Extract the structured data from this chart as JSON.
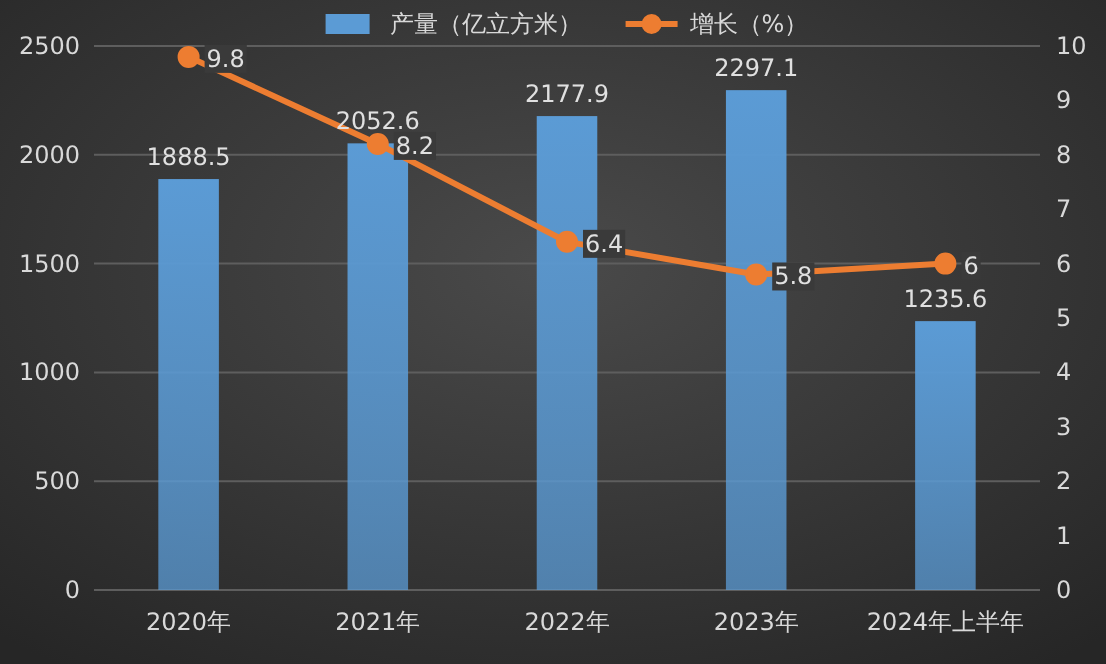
{
  "chart_data": {
    "type": "bar",
    "categories": [
      "2020年",
      "2021年",
      "2022年",
      "2023年",
      "2024年上半年"
    ],
    "series": [
      {
        "name": "产量（亿立方米）",
        "color": "#5b9bd5",
        "values": [
          1888.5,
          2052.6,
          2177.9,
          2297.1,
          1235.6
        ]
      },
      {
        "name": "增长（%）",
        "type": "line",
        "axis": "y2",
        "color": "#ed7d31",
        "marker": "circle",
        "values": [
          9.8,
          8.2,
          6.4,
          5.8,
          6
        ]
      }
    ],
    "ylim": [
      0,
      2500
    ],
    "yticks": [
      0,
      500,
      1000,
      1500,
      2000,
      2500
    ],
    "y2lim": [
      0,
      10
    ],
    "y2ticks": [
      0,
      1,
      2,
      3,
      4,
      5,
      6,
      7,
      8,
      9,
      10
    ],
    "grid": "y",
    "legend": "top",
    "data_labels": true
  }
}
